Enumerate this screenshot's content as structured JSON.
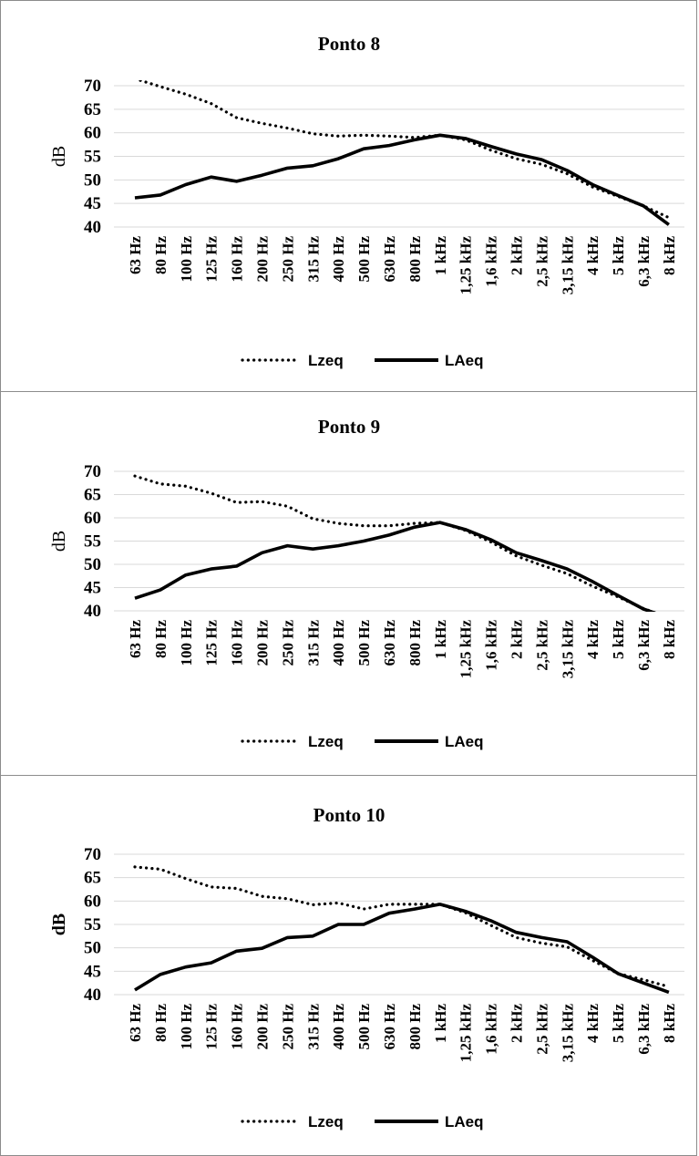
{
  "chart_data": [
    {
      "type": "line",
      "title": "Ponto 8",
      "ylabel": "dB",
      "ylim": [
        40,
        70
      ],
      "yticks": [
        "70",
        "65",
        "60",
        "55",
        "50",
        "45",
        "40"
      ],
      "grid": true,
      "legend": "bottom",
      "categories": [
        "63 Hz",
        "80 Hz",
        "100 Hz",
        "125 Hz",
        "160 Hz",
        "200 Hz",
        "250 Hz",
        "315 Hz",
        "400 Hz",
        "500 Hz",
        "630 Hz",
        "800 Hz",
        "1 kHz",
        "1,25 kHz",
        "1,6 kHz",
        "2 kHz",
        "2,5 kHz",
        "3,15 kHz",
        "4 kHz",
        "5 kHz",
        "6,3 kHz",
        "8 kHz"
      ],
      "series": [
        {
          "name": "Lzeq",
          "style": "dotted",
          "values": [
            71.5,
            69.8,
            68.2,
            66.2,
            63.2,
            62.0,
            61.0,
            59.8,
            59.3,
            59.5,
            59.3,
            59.0,
            59.5,
            58.5,
            56.3,
            54.5,
            53.3,
            51.3,
            48.5,
            46.5,
            44.5,
            42.0
          ]
        },
        {
          "name": "LAeq",
          "style": "solid",
          "values": [
            46.2,
            46.8,
            49.0,
            50.6,
            49.7,
            51.0,
            52.5,
            53.0,
            54.5,
            56.6,
            57.3,
            58.5,
            59.5,
            58.8,
            57.1,
            55.5,
            54.3,
            52.0,
            49.0,
            46.7,
            44.5,
            40.5
          ]
        }
      ]
    },
    {
      "type": "line",
      "title": "Ponto 9",
      "ylabel": "dB",
      "ylim": [
        40,
        70
      ],
      "yticks": [
        "70",
        "65",
        "60",
        "55",
        "50",
        "45",
        "40"
      ],
      "grid": true,
      "legend": "bottom",
      "categories": [
        "63 Hz",
        "80 Hz",
        "100 Hz",
        "125 Hz",
        "160 Hz",
        "200 Hz",
        "250 Hz",
        "315 Hz",
        "400 Hz",
        "500 Hz",
        "630 Hz",
        "800 Hz",
        "1 kHz",
        "1,25 kHz",
        "1,6 kHz",
        "2 kHz",
        "2,5 kHz",
        "3,15 kHz",
        "4 kHz",
        "5 kHz",
        "6,3 kHz",
        "8 kHz"
      ],
      "series": [
        {
          "name": "Lzeq",
          "style": "dotted",
          "values": [
            69.0,
            67.3,
            66.8,
            65.3,
            63.3,
            63.5,
            62.5,
            59.8,
            58.8,
            58.3,
            58.3,
            58.8,
            59.0,
            57.3,
            54.8,
            51.8,
            49.8,
            48.0,
            45.3,
            43.0,
            40.5,
            38.5
          ]
        },
        {
          "name": "LAeq",
          "style": "solid",
          "values": [
            42.7,
            44.5,
            47.7,
            49.0,
            49.6,
            52.5,
            54.0,
            53.3,
            54.0,
            55.0,
            56.3,
            58.0,
            59.0,
            57.5,
            55.3,
            52.5,
            50.8,
            49.0,
            46.3,
            43.3,
            40.4,
            38.5
          ]
        }
      ]
    },
    {
      "type": "line",
      "title": "Ponto 10",
      "ylabel": "dB",
      "ylim": [
        40,
        70
      ],
      "yticks": [
        "70",
        "65",
        "60",
        "55",
        "50",
        "45",
        "40"
      ],
      "grid": true,
      "legend": "bottom",
      "categories": [
        "63 Hz",
        "80 Hz",
        "100 Hz",
        "125 Hz",
        "160 Hz",
        "200 Hz",
        "250 Hz",
        "315 Hz",
        "400 Hz",
        "500 Hz",
        "630 Hz",
        "800 Hz",
        "1 kHz",
        "1,25 kHz",
        "1,6 kHz",
        "2 kHz",
        "2,5 kHz",
        "3,15 kHz",
        "4 kHz",
        "5 kHz",
        "6,3 kHz",
        "8 kHz"
      ],
      "series": [
        {
          "name": "Lzeq",
          "style": "dotted",
          "values": [
            67.3,
            66.8,
            64.8,
            63.0,
            62.7,
            61.0,
            60.5,
            59.2,
            59.6,
            58.3,
            59.3,
            59.3,
            59.3,
            57.5,
            54.8,
            52.2,
            51.0,
            50.2,
            47.3,
            44.5,
            43.2,
            41.7
          ]
        },
        {
          "name": "LAeq",
          "style": "solid",
          "values": [
            41.0,
            44.3,
            45.9,
            46.8,
            49.3,
            49.9,
            52.2,
            52.5,
            55.0,
            55.0,
            57.4,
            58.3,
            59.3,
            57.8,
            55.8,
            53.3,
            52.2,
            51.3,
            48.0,
            44.5,
            42.5,
            40.5
          ]
        }
      ]
    }
  ]
}
